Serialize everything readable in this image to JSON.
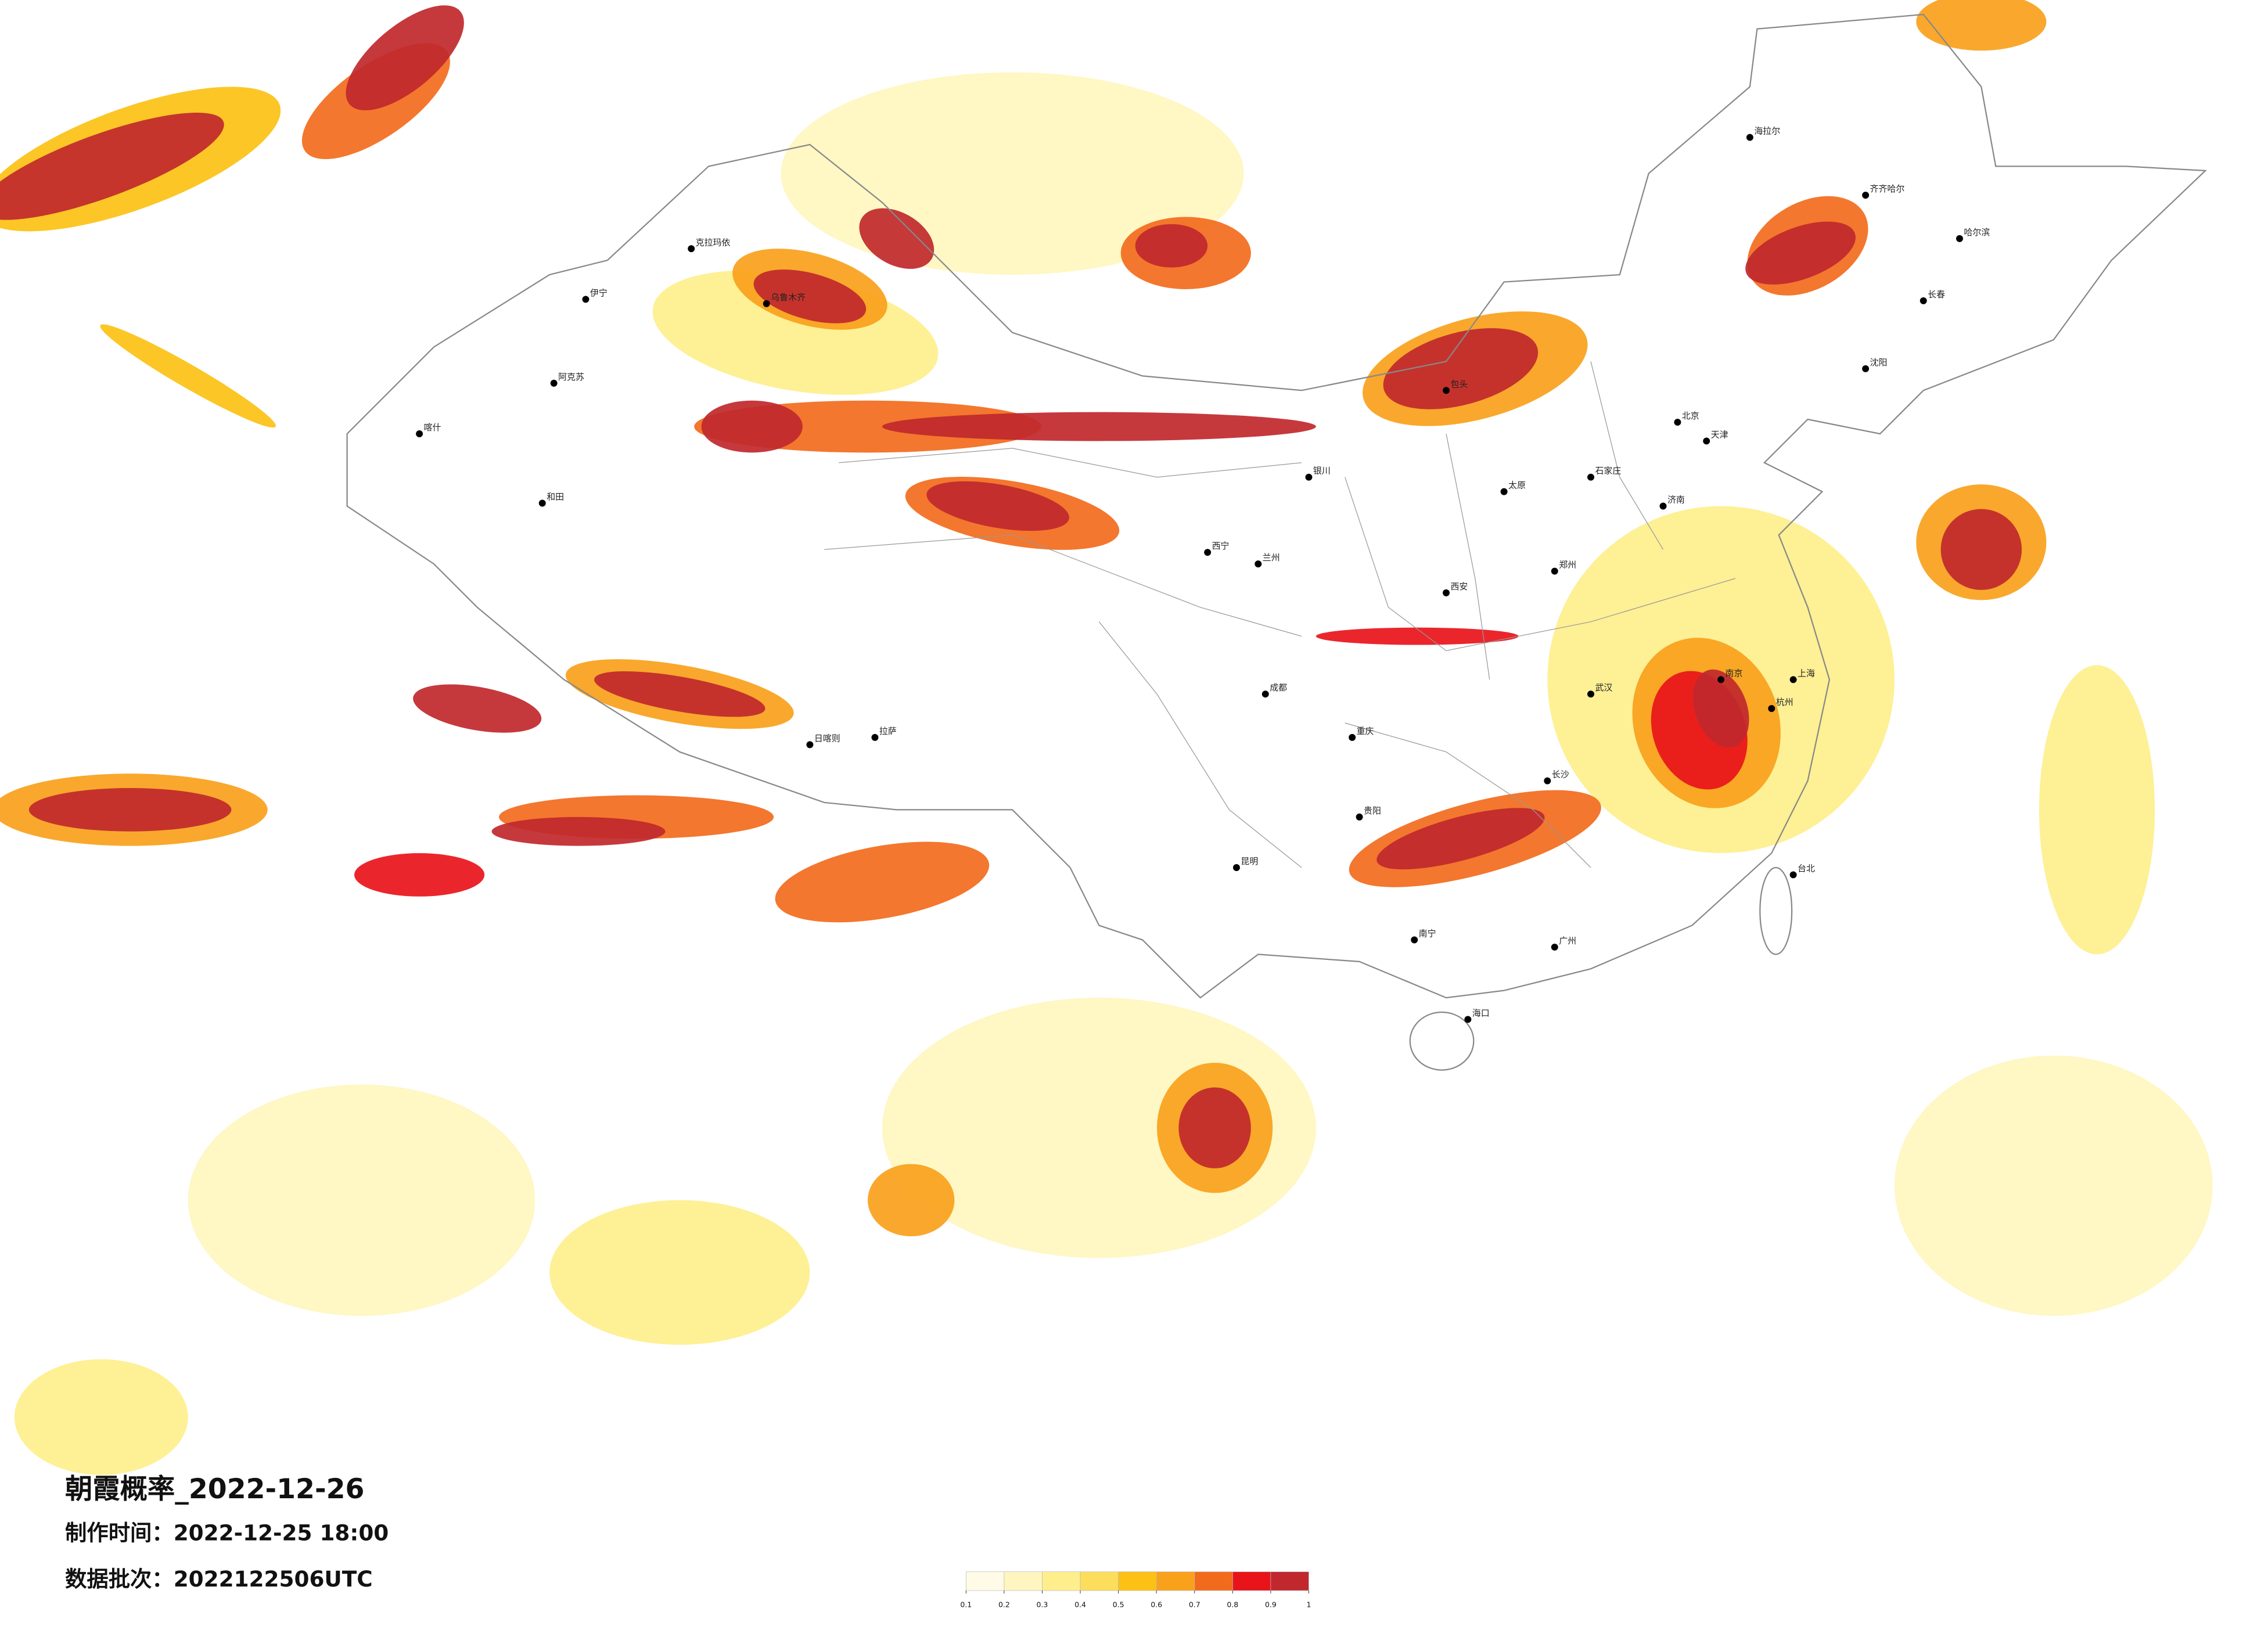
{
  "header": {
    "title": "朝霞概率_2022-12-26"
  },
  "info": [
    "制作时间：2022-12-25 18:00",
    "数据批次：2022122506UTC"
  ],
  "colorbar": {
    "ticks": [
      0.1,
      0.2,
      0.3,
      0.4,
      0.5,
      0.6,
      0.7,
      0.8,
      0.9,
      1
    ],
    "colors": [
      "#fffbe6",
      "#fff6bf",
      "#feef8c",
      "#fddd5c",
      "#fcc114",
      "#f9a11b",
      "#f26b1c",
      "#e8141a",
      "#c0282d"
    ]
  },
  "cities": [
    "伊宁",
    "克拉玛依",
    "乌鲁木齐",
    "阿克苏",
    "和田",
    "喀什",
    "拉萨",
    "日喀则",
    "西宁",
    "兰州",
    "银川",
    "包头",
    "北京",
    "天津",
    "石家庄",
    "太原",
    "济南",
    "郑州",
    "西安",
    "上海",
    "南京",
    "杭州",
    "武汉",
    "长沙",
    "重庆",
    "成都",
    "贵阳",
    "昆明",
    "南宁",
    "广州",
    "海口",
    "台北",
    "沈阳",
    "长春",
    "哈尔滨",
    "齐齐哈尔",
    "海拉尔"
  ]
}
